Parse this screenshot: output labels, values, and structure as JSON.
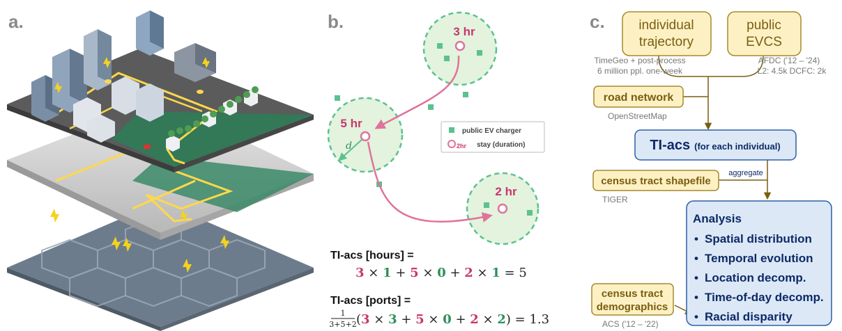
{
  "panel_a": {
    "label": "a."
  },
  "panel_b": {
    "label": "b.",
    "stays": [
      {
        "duration": "3 hr"
      },
      {
        "duration": "5 hr"
      },
      {
        "duration": "2 hr"
      }
    ],
    "radius_label": "d",
    "legend": {
      "charger": "public EV charger",
      "stay_marker": "2hr",
      "stay_text": "stay (duration)"
    },
    "formula_hours": {
      "title": "TI-acs [hours] =",
      "terms": [
        {
          "hours": "3",
          "count": "1"
        },
        {
          "hours": "5",
          "count": "0"
        },
        {
          "hours": "2",
          "count": "1"
        }
      ],
      "result": "5"
    },
    "formula_ports": {
      "title": "TI-acs [ports] =",
      "frac_num": "1",
      "frac_den": "3+5+2",
      "terms": [
        {
          "hours": "3",
          "count": "3"
        },
        {
          "hours": "5",
          "count": "0"
        },
        {
          "hours": "2",
          "count": "2"
        }
      ],
      "result": "1.3"
    },
    "colors": {
      "hours": "#c8366e",
      "count": "#2f8f5b",
      "charger": "#5cc18e",
      "path": "#e0739b"
    }
  },
  "panel_c": {
    "label": "c.",
    "traj": {
      "line1": "individual",
      "line2": "trajectory",
      "src1": "TimeGeo + post-process",
      "src2": "6 million ppl.  one-week"
    },
    "evcs": {
      "line1": "public",
      "line2": "EVCS",
      "src1": "AFDC ('12 – '24)",
      "src2": "L2: 4.5k   DCFC: 2k"
    },
    "road": {
      "label": "road network",
      "src": "OpenStreetMap"
    },
    "tiacs": {
      "label": "TI-acs",
      "suffix": "(for each individual)"
    },
    "shape": {
      "label": "census tract shapefile",
      "src": "TIGER",
      "aggregate": "aggregate"
    },
    "demo": {
      "line1": "census tract",
      "line2": "demographics",
      "src": "ACS ('12 – '22)"
    },
    "analysis": {
      "title": "Analysis",
      "items": [
        "Spatial distribution",
        "Temporal evolution",
        "Location decomp.",
        "Time-of-day decomp.",
        "Racial disparity"
      ]
    },
    "colors": {
      "box_fill": "#fdf1c4",
      "box_stroke": "#a48a2c",
      "text": "#8b6b12",
      "blue_fill": "#dce8f6",
      "blue_stroke": "#2f5fa6",
      "blue_text": "#0d2a66"
    }
  }
}
